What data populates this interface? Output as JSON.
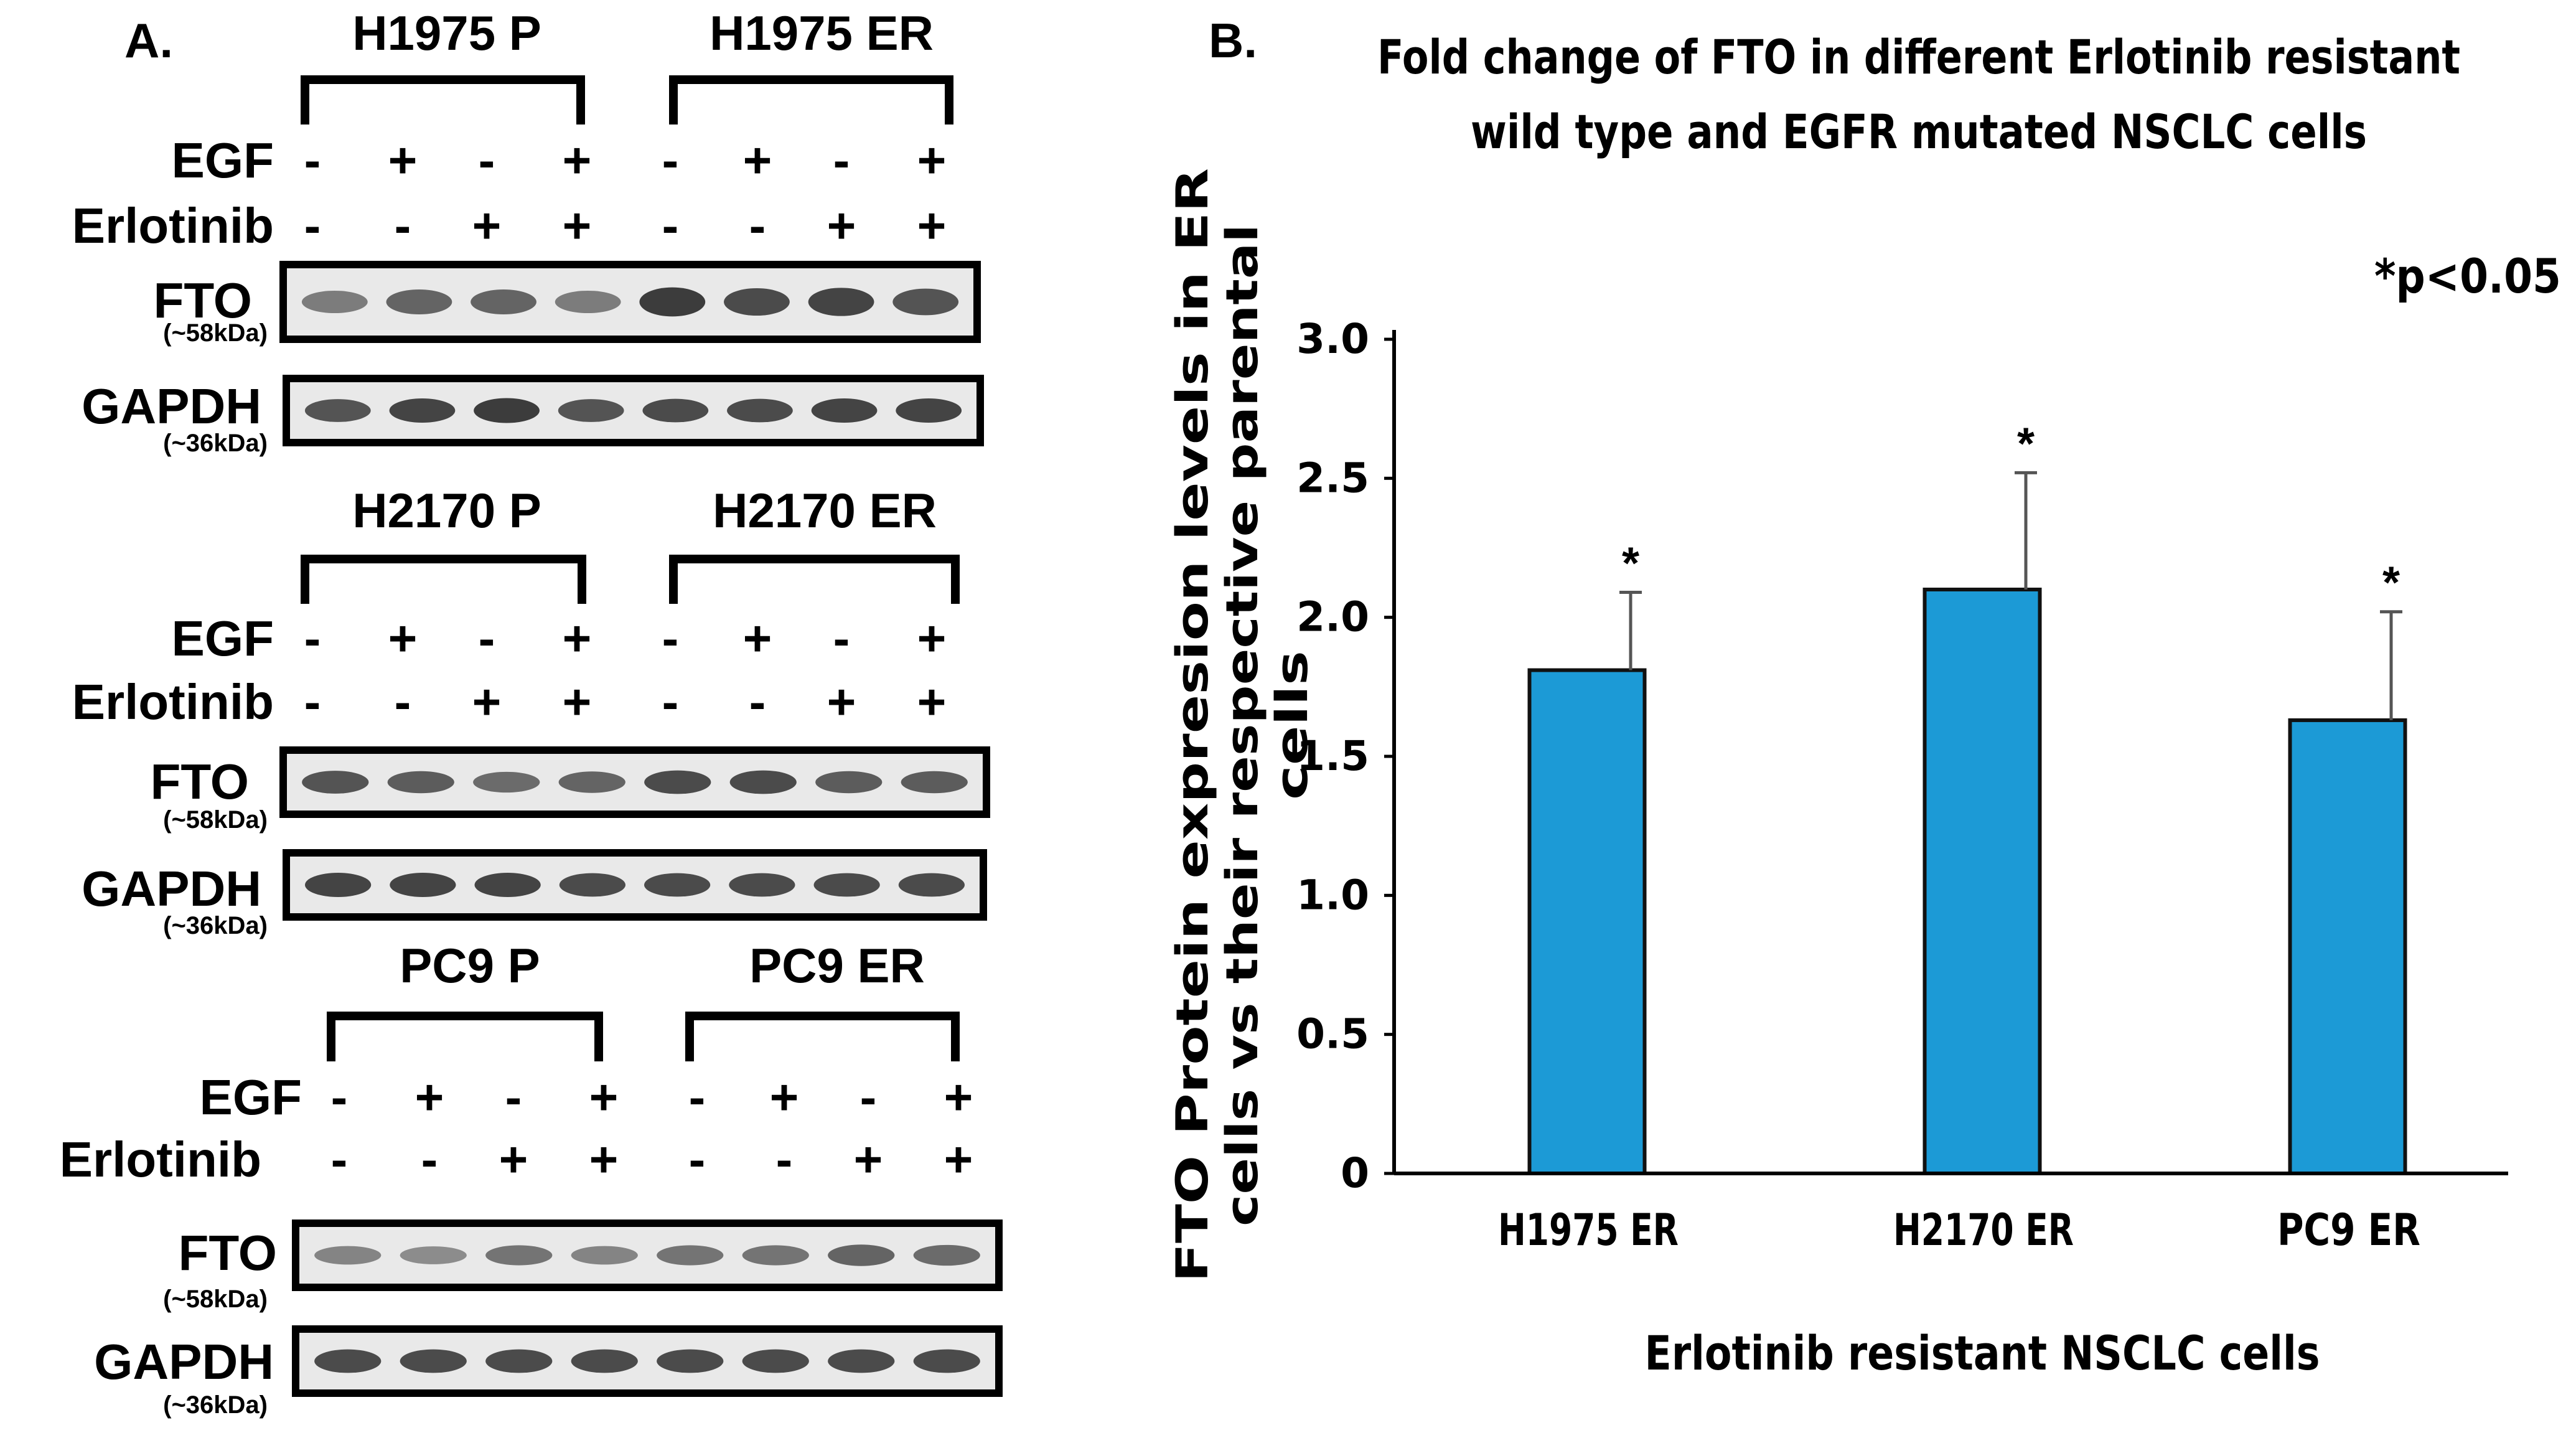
{
  "panel_a": {
    "label": "A.",
    "treatment_labels": {
      "egf": "EGF",
      "erlotinib": "Erlotinib"
    },
    "egf_signs": [
      "-",
      "+",
      "-",
      "+",
      "-",
      "+",
      "-",
      "+"
    ],
    "erlotinib_signs": [
      "-",
      "-",
      "+",
      "+",
      "-",
      "-",
      "+",
      "+"
    ],
    "blots": [
      {
        "parental": "H1975 P",
        "resistant": "H1975 ER",
        "bands": [
          {
            "protein": "FTO",
            "weight": "(~58kDa)",
            "intensity": [
              0.55,
              0.7,
              0.7,
              0.55,
              0.95,
              0.85,
              0.9,
              0.8
            ]
          },
          {
            "protein": "GAPDH",
            "weight": "(~36kDa)",
            "intensity": [
              0.8,
              0.9,
              0.95,
              0.8,
              0.85,
              0.85,
              0.9,
              0.9
            ]
          }
        ]
      },
      {
        "parental": "H2170 P",
        "resistant": "H2170 ER",
        "bands": [
          {
            "protein": "FTO",
            "weight": "(~58kDa)",
            "intensity": [
              0.8,
              0.75,
              0.65,
              0.7,
              0.85,
              0.85,
              0.75,
              0.75
            ]
          },
          {
            "protein": "GAPDH",
            "weight": "(~36kDa)",
            "intensity": [
              0.9,
              0.9,
              0.9,
              0.85,
              0.85,
              0.85,
              0.85,
              0.85
            ]
          }
        ]
      },
      {
        "parental": "PC9 P",
        "resistant": "PC9 ER",
        "bands": [
          {
            "protein": "FTO",
            "weight": "(~58kDa)",
            "intensity": [
              0.5,
              0.45,
              0.6,
              0.5,
              0.6,
              0.6,
              0.7,
              0.65
            ]
          },
          {
            "protein": "GAPDH",
            "weight": "(~36kDa)",
            "intensity": [
              0.85,
              0.85,
              0.85,
              0.85,
              0.85,
              0.85,
              0.85,
              0.85
            ]
          }
        ]
      }
    ]
  },
  "panel_b": {
    "label": "B.",
    "significance_note": "*p<0.05"
  },
  "chart_data": {
    "type": "bar",
    "title": "Fold change of FTO in different Erlotinib resistant wild type and EGFR mutated NSCLC cells",
    "title_lines": [
      "Fold change of FTO in different Erlotinib resistant",
      "wild type and EGFR mutated NSCLC cells"
    ],
    "xlabel": "Erlotinib resistant NSCLC cells",
    "ylabel": "FTO Protein expresion levels in ER cells vs their respective parental cells",
    "ylabel_lines": [
      "FTO Protein expresion levels in ER",
      "cells vs their respective parental",
      "cells"
    ],
    "categories": [
      "H1975 ER",
      "H2170 ER",
      "PC9 ER"
    ],
    "values": [
      1.81,
      2.1,
      1.63
    ],
    "error": [
      0.28,
      0.42,
      0.39
    ],
    "significance": [
      "*",
      "*",
      "*"
    ],
    "ylim": [
      0,
      3
    ],
    "yticks": [
      0,
      0.5,
      1,
      1.5,
      2,
      2.5,
      3
    ],
    "ytick_labels": [
      "0",
      "0.5",
      "1.0",
      "1.5",
      "2.0",
      "2.5",
      "3.0"
    ],
    "grid": false,
    "bar_color": "#1c9ad6",
    "bar_edge_color": "#111111"
  }
}
